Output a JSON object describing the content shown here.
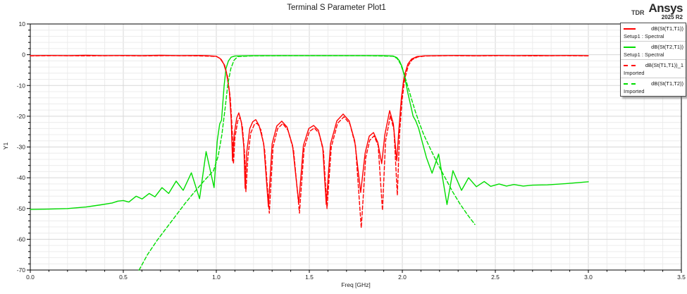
{
  "header": {
    "title": "Terminal S Parameter Plot1",
    "tdr": "TDR",
    "brand": "Ansys",
    "brand_version": "2025 R2"
  },
  "axes_labels": {
    "y": "Y1",
    "x": "Freq [GHz]"
  },
  "legend": {
    "position": "top-right",
    "entries": [
      {
        "label": "dB(St(T1,T1))",
        "sublabel": "Setup1 : Spectral",
        "color": "#ff0000",
        "dash": false
      },
      {
        "label": "dB(St(T2,T1))",
        "sublabel": "Setup1 : Spectral",
        "color": "#00dd00",
        "dash": false
      },
      {
        "label": "dB(St(T1,T1))_1",
        "sublabel": "Imported",
        "color": "#ff0000",
        "dash": true
      },
      {
        "label": "dB(St(T1,T2))",
        "sublabel": "Imported",
        "color": "#00dd00",
        "dash": true
      }
    ]
  },
  "chart_data": {
    "type": "line",
    "title": "Terminal S Parameter Plot1",
    "xlabel": "Freq [GHz]",
    "ylabel": "Y1",
    "xlim": [
      0,
      3.5
    ],
    "ylim": [
      -70,
      10
    ],
    "x_major_step": 0.5,
    "x_minor_step": 0.1,
    "y_major_step": 10,
    "y_minor_step": 2,
    "x_tick_labels": [
      "0.0",
      "0.5",
      "1.0",
      "1.5",
      "2.0",
      "2.5",
      "3.0",
      "3.5"
    ],
    "y_tick_labels": [
      "10",
      "0",
      "-10",
      "-20",
      "-30",
      "-40",
      "-50",
      "-60",
      "-70"
    ],
    "grid": true,
    "legend_position": "top-right",
    "colors": {
      "grid_minor": "#ececec",
      "grid_major": "#d7d7d7",
      "frame": "#000000",
      "red": "#ff0000",
      "green": "#00dd00"
    },
    "series": [
      {
        "name": "dB(St(T1,T1))",
        "setup": "Setup1 : Spectral",
        "color": "#ff0000",
        "dash": false,
        "points": [
          [
            0,
            -0.3
          ],
          [
            0.1,
            -0.25
          ],
          [
            0.2,
            -0.3
          ],
          [
            0.3,
            -0.2
          ],
          [
            0.4,
            -0.3
          ],
          [
            0.5,
            -0.25
          ],
          [
            0.6,
            -0.3
          ],
          [
            0.7,
            -0.2
          ],
          [
            0.8,
            -0.3
          ],
          [
            0.9,
            -0.25
          ],
          [
            0.95,
            -0.3
          ],
          [
            1.0,
            -0.5
          ],
          [
            1.02,
            -1.2
          ],
          [
            1.04,
            -3
          ],
          [
            1.055,
            -6
          ],
          [
            1.07,
            -12
          ],
          [
            1.08,
            -21
          ],
          [
            1.087,
            -34.5
          ],
          [
            1.096,
            -26
          ],
          [
            1.11,
            -20.5
          ],
          [
            1.121,
            -18.9
          ],
          [
            1.135,
            -22
          ],
          [
            1.148,
            -30
          ],
          [
            1.155,
            -43.4
          ],
          [
            1.163,
            -32
          ],
          [
            1.18,
            -24
          ],
          [
            1.196,
            -21.8
          ],
          [
            1.212,
            -21.1
          ],
          [
            1.23,
            -23
          ],
          [
            1.255,
            -29
          ],
          [
            1.28,
            -49.4
          ],
          [
            1.3,
            -29
          ],
          [
            1.325,
            -23.2
          ],
          [
            1.352,
            -21.6
          ],
          [
            1.38,
            -23.5
          ],
          [
            1.41,
            -29.5
          ],
          [
            1.443,
            -48.3
          ],
          [
            1.468,
            -29.5
          ],
          [
            1.497,
            -24
          ],
          [
            1.523,
            -23.0
          ],
          [
            1.548,
            -24.5
          ],
          [
            1.572,
            -30
          ],
          [
            1.591,
            -48.7
          ],
          [
            1.614,
            -29
          ],
          [
            1.648,
            -21.5
          ],
          [
            1.682,
            -19.3
          ],
          [
            1.714,
            -21.5
          ],
          [
            1.744,
            -28
          ],
          [
            1.776,
            -44.8
          ],
          [
            1.8,
            -32
          ],
          [
            1.822,
            -26.5
          ],
          [
            1.845,
            -25.3
          ],
          [
            1.868,
            -28.5
          ],
          [
            1.889,
            -35.4
          ],
          [
            1.906,
            -26
          ],
          [
            1.932,
            -18.2
          ],
          [
            1.952,
            -22.5
          ],
          [
            1.97,
            -34.5
          ],
          [
            1.982,
            -24
          ],
          [
            1.995,
            -14
          ],
          [
            2.01,
            -7
          ],
          [
            2.03,
            -3
          ],
          [
            2.05,
            -1.4
          ],
          [
            2.08,
            -0.6
          ],
          [
            2.12,
            -0.35
          ],
          [
            2.2,
            -0.3
          ],
          [
            2.3,
            -0.25
          ],
          [
            2.4,
            -0.3
          ],
          [
            2.5,
            -0.25
          ],
          [
            2.6,
            -0.3
          ],
          [
            2.7,
            -0.25
          ],
          [
            2.8,
            -0.3
          ],
          [
            2.9,
            -0.25
          ],
          [
            3.0,
            -0.3
          ]
        ]
      },
      {
        "name": "dB(St(T2,T1))",
        "setup": "Setup1 : Spectral",
        "color": "#00dd00",
        "dash": false,
        "points": [
          [
            0,
            -50.3
          ],
          [
            0.1,
            -50.2
          ],
          [
            0.2,
            -50.0
          ],
          [
            0.3,
            -49.5
          ],
          [
            0.38,
            -48.8
          ],
          [
            0.44,
            -48.2
          ],
          [
            0.47,
            -47.6
          ],
          [
            0.5,
            -47.4
          ],
          [
            0.53,
            -47.9
          ],
          [
            0.569,
            -46.0
          ],
          [
            0.601,
            -46.9
          ],
          [
            0.639,
            -45.1
          ],
          [
            0.67,
            -46.2
          ],
          [
            0.708,
            -43.2
          ],
          [
            0.744,
            -45.1
          ],
          [
            0.784,
            -41.1
          ],
          [
            0.822,
            -44.1
          ],
          [
            0.866,
            -38.4
          ],
          [
            0.91,
            -46.8
          ],
          [
            0.945,
            -31.5
          ],
          [
            0.988,
            -43.2
          ],
          [
            1.005,
            -28
          ],
          [
            1.018,
            -22.5
          ],
          [
            1.028,
            -21.3
          ],
          [
            1.042,
            -10
          ],
          [
            1.052,
            -4.5
          ],
          [
            1.065,
            -2
          ],
          [
            1.08,
            -0.8
          ],
          [
            1.1,
            -0.4
          ],
          [
            1.2,
            -0.3
          ],
          [
            1.3,
            -0.3
          ],
          [
            1.4,
            -0.3
          ],
          [
            1.5,
            -0.3
          ],
          [
            1.6,
            -0.3
          ],
          [
            1.7,
            -0.3
          ],
          [
            1.8,
            -0.3
          ],
          [
            1.9,
            -0.3
          ],
          [
            1.95,
            -0.4
          ],
          [
            1.97,
            -0.9
          ],
          [
            1.985,
            -2
          ],
          [
            2.0,
            -4.2
          ],
          [
            2.015,
            -8
          ],
          [
            2.03,
            -12.5
          ],
          [
            2.045,
            -16.5
          ],
          [
            2.058,
            -20
          ],
          [
            2.072,
            -21.5
          ],
          [
            2.088,
            -24
          ],
          [
            2.11,
            -29
          ],
          [
            2.13,
            -33.5
          ],
          [
            2.16,
            -38.5
          ],
          [
            2.195,
            -32.3
          ],
          [
            2.24,
            -48.7
          ],
          [
            2.272,
            -37.7
          ],
          [
            2.318,
            -44.1
          ],
          [
            2.356,
            -40.0
          ],
          [
            2.398,
            -42.9
          ],
          [
            2.44,
            -41.2
          ],
          [
            2.475,
            -42.8
          ],
          [
            2.52,
            -42.0
          ],
          [
            2.56,
            -42.7
          ],
          [
            2.6,
            -42.2
          ],
          [
            2.65,
            -42.7
          ],
          [
            2.7,
            -42.4
          ],
          [
            2.78,
            -42.3
          ],
          [
            2.88,
            -41.9
          ],
          [
            3.0,
            -41.3
          ]
        ]
      },
      {
        "name": "dB(St(T1,T1))_1",
        "setup": "Imported",
        "color": "#ff0000",
        "dash": true,
        "points": [
          [
            0,
            -0.35
          ],
          [
            0.15,
            -0.3
          ],
          [
            0.3,
            -0.35
          ],
          [
            0.45,
            -0.3
          ],
          [
            0.6,
            -0.35
          ],
          [
            0.75,
            -0.3
          ],
          [
            0.9,
            -0.35
          ],
          [
            1.0,
            -0.55
          ],
          [
            1.025,
            -1.4
          ],
          [
            1.045,
            -3.5
          ],
          [
            1.06,
            -7
          ],
          [
            1.075,
            -14
          ],
          [
            1.085,
            -24
          ],
          [
            1.092,
            -35.5
          ],
          [
            1.1,
            -27
          ],
          [
            1.115,
            -21.5
          ],
          [
            1.128,
            -20.3
          ],
          [
            1.14,
            -23.5
          ],
          [
            1.152,
            -32
          ],
          [
            1.159,
            -44.5
          ],
          [
            1.17,
            -33
          ],
          [
            1.185,
            -25.5
          ],
          [
            1.205,
            -22.6
          ],
          [
            1.22,
            -22.3
          ],
          [
            1.24,
            -24.5
          ],
          [
            1.26,
            -31
          ],
          [
            1.285,
            -51.5
          ],
          [
            1.305,
            -30
          ],
          [
            1.33,
            -24
          ],
          [
            1.357,
            -22.4
          ],
          [
            1.385,
            -24.5
          ],
          [
            1.415,
            -31
          ],
          [
            1.447,
            -51.5
          ],
          [
            1.472,
            -30.5
          ],
          [
            1.5,
            -25
          ],
          [
            1.527,
            -23.8
          ],
          [
            1.552,
            -25.5
          ],
          [
            1.576,
            -31.5
          ],
          [
            1.595,
            -50
          ],
          [
            1.618,
            -30
          ],
          [
            1.652,
            -22.3
          ],
          [
            1.686,
            -20.2
          ],
          [
            1.718,
            -22.5
          ],
          [
            1.748,
            -29.5
          ],
          [
            1.779,
            -56.3
          ],
          [
            1.803,
            -33.5
          ],
          [
            1.825,
            -27.8
          ],
          [
            1.848,
            -26.4
          ],
          [
            1.87,
            -29.5
          ],
          [
            1.893,
            -50.6
          ],
          [
            1.91,
            -28
          ],
          [
            1.936,
            -19.8
          ],
          [
            1.955,
            -24.5
          ],
          [
            1.973,
            -45.7
          ],
          [
            1.985,
            -26
          ],
          [
            1.998,
            -15
          ],
          [
            2.013,
            -7.8
          ],
          [
            2.033,
            -3.4
          ],
          [
            2.053,
            -1.6
          ],
          [
            2.083,
            -0.7
          ],
          [
            2.123,
            -0.4
          ],
          [
            2.25,
            -0.3
          ],
          [
            2.4,
            -0.35
          ],
          [
            2.55,
            -0.3
          ],
          [
            2.7,
            -0.35
          ],
          [
            2.85,
            -0.3
          ],
          [
            3.0,
            -0.35
          ]
        ]
      },
      {
        "name": "dB(St(T1,T2))",
        "setup": "Imported",
        "color": "#00dd00",
        "dash": true,
        "points": [
          [
            0.585,
            -70
          ],
          [
            0.63,
            -65
          ],
          [
            0.68,
            -60.5
          ],
          [
            0.73,
            -56.5
          ],
          [
            0.78,
            -52.5
          ],
          [
            0.83,
            -48.5
          ],
          [
            0.88,
            -44.8
          ],
          [
            0.93,
            -41.3
          ],
          [
            0.985,
            -37.7
          ],
          [
            1.01,
            -33
          ],
          [
            1.03,
            -26
          ],
          [
            1.048,
            -17
          ],
          [
            1.062,
            -9.5
          ],
          [
            1.078,
            -4.5
          ],
          [
            1.095,
            -1.8
          ],
          [
            1.115,
            -0.6
          ],
          [
            1.2,
            -0.35
          ],
          [
            1.4,
            -0.3
          ],
          [
            1.6,
            -0.3
          ],
          [
            1.8,
            -0.3
          ],
          [
            1.95,
            -0.5
          ],
          [
            1.972,
            -1.2
          ],
          [
            1.99,
            -3
          ],
          [
            2.008,
            -6
          ],
          [
            2.028,
            -10
          ],
          [
            2.05,
            -14.5
          ],
          [
            2.07,
            -18.5
          ],
          [
            2.09,
            -22
          ],
          [
            2.115,
            -26
          ],
          [
            2.15,
            -30.5
          ],
          [
            2.19,
            -35.5
          ],
          [
            2.23,
            -40
          ],
          [
            2.27,
            -44.5
          ],
          [
            2.31,
            -48.5
          ],
          [
            2.35,
            -52
          ],
          [
            2.39,
            -55.2
          ]
        ]
      }
    ]
  }
}
